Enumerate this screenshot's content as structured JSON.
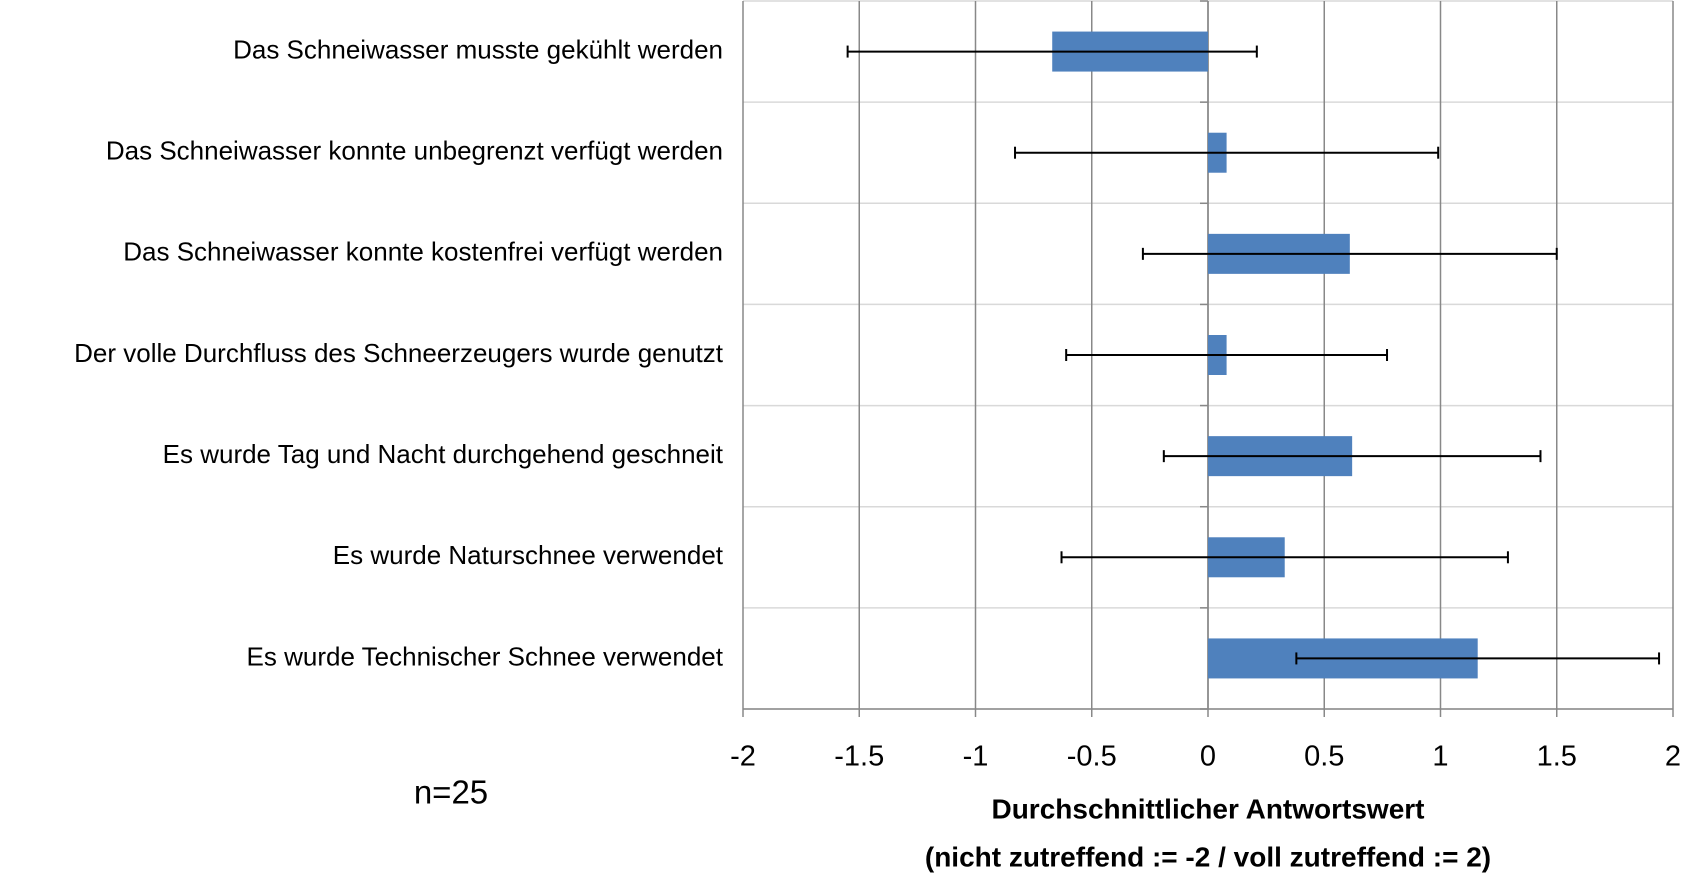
{
  "chart_data": {
    "type": "bar",
    "orientation": "horizontal",
    "categories": [
      "Das Schneiwasser musste gekühlt werden",
      "Das Schneiwasser konnte unbegrenzt verfügt werden",
      "Das Schneiwasser konnte kostenfrei verfügt werden",
      "Der volle Durchfluss des Schneerzeugers wurde genutzt",
      "Es wurde Tag und Nacht durchgehend geschneit",
      "Es wurde Naturschnee verwendet",
      "Es wurde Technischer Schnee verwendet"
    ],
    "values": [
      -0.67,
      0.08,
      0.61,
      0.08,
      0.62,
      0.33,
      1.16
    ],
    "errors": [
      0.88,
      0.91,
      0.89,
      0.69,
      0.81,
      0.96,
      0.78
    ],
    "color": "#4f81bd",
    "xlim": [
      -2,
      2
    ],
    "xticks": [
      -2,
      -1.5,
      -1,
      -0.5,
      0,
      0.5,
      1,
      1.5,
      2
    ],
    "xlabel": [
      "Durchschnittlicher Antwortswert",
      "(nicht zutreffend := -2 / voll zutreffend := 2)"
    ],
    "annotation": "n=25",
    "grid": true
  }
}
